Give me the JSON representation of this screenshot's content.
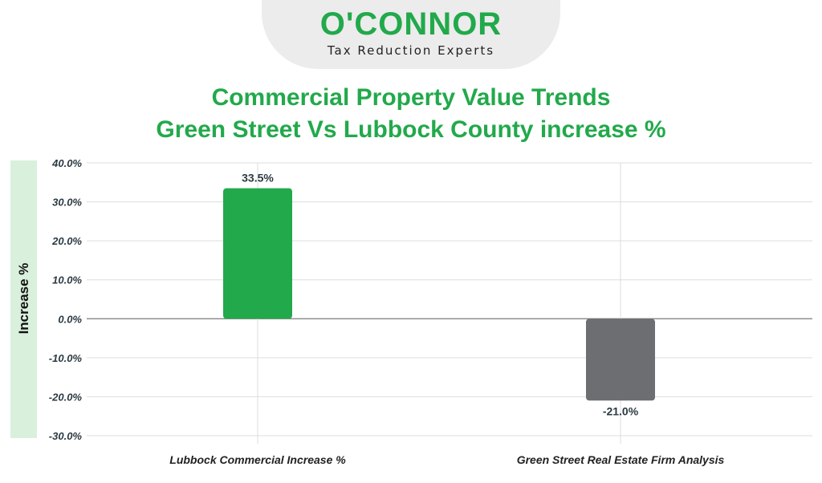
{
  "logo": {
    "name": "O'CONNOR",
    "tagline": "Tax Reduction Experts"
  },
  "chart_data": {
    "type": "bar",
    "title_lines": [
      "Commercial Property Value Trends",
      "Green Street Vs Lubbock County increase %"
    ],
    "xlabel": "",
    "ylabel": "Increase %",
    "categories": [
      "Lubbock Commercial Increase %",
      "Green Street Real Estate Firm Analysis"
    ],
    "values": [
      33.5,
      -21.0
    ],
    "data_labels": [
      "33.5%",
      "-21.0%"
    ],
    "bar_colors": [
      "#22a94b",
      "#6d6e71"
    ],
    "ylim": [
      -30,
      40
    ],
    "yticks": [
      40,
      30,
      20,
      10,
      0,
      -10,
      -20,
      -30
    ],
    "ytick_labels": [
      "40.0%",
      "30.0%",
      "20.0%",
      "10.0%",
      "0.0%",
      "-10.0%",
      "-20.0%",
      "-30.0%"
    ],
    "grid": true,
    "legend": "none"
  },
  "colors": {
    "accent": "#22a94b",
    "band": "#d9f0dd"
  }
}
